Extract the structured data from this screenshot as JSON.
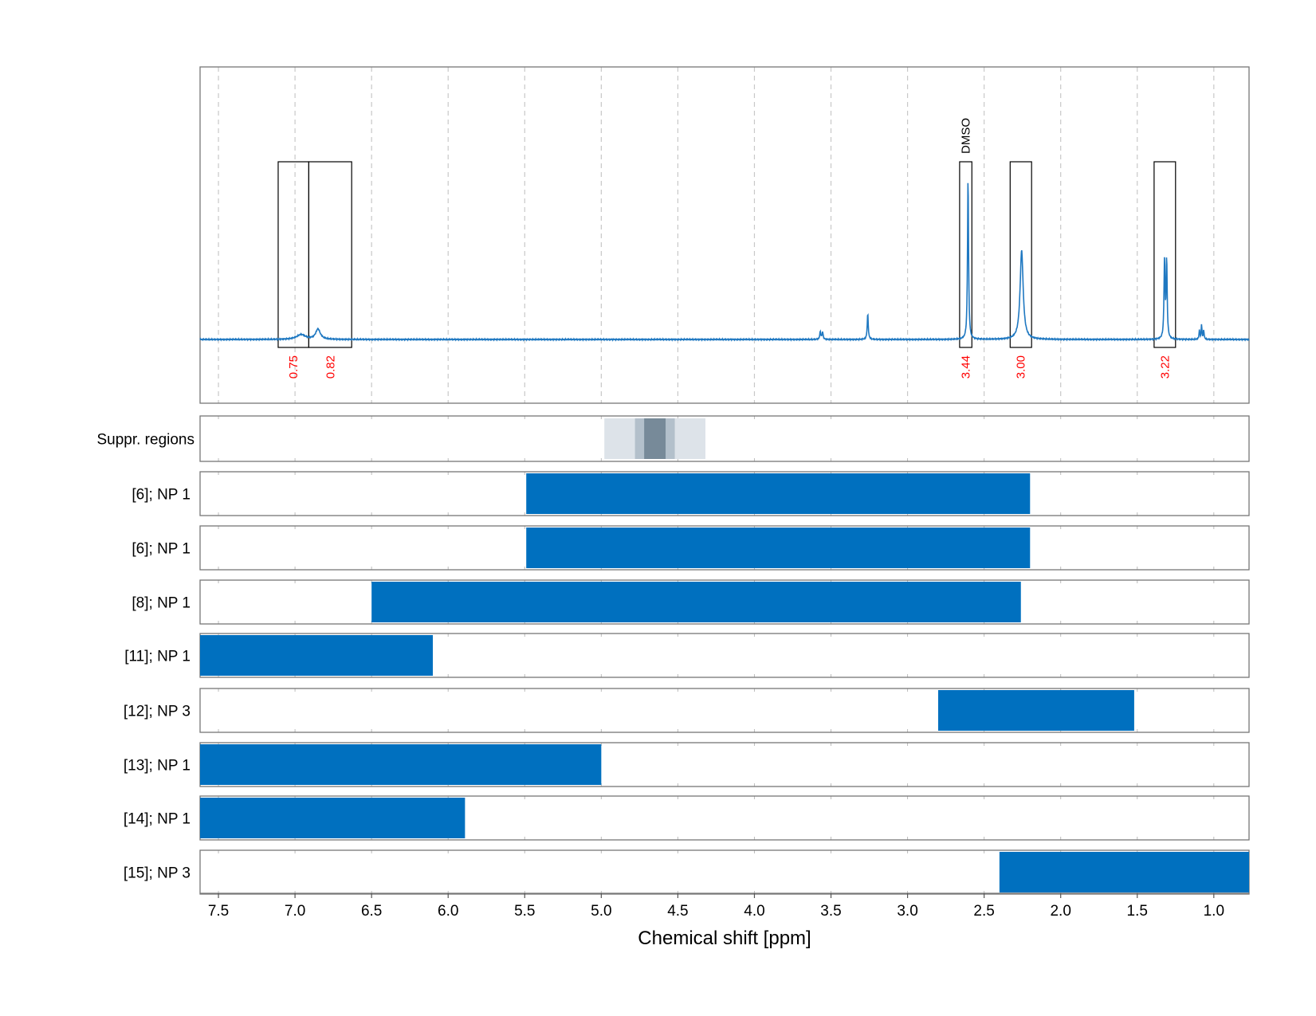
{
  "chart_data": {
    "type": "line",
    "xlabel": "Chemical shift [ppm]",
    "x_reversed": true,
    "xlim": [
      7.62,
      0.77
    ],
    "xticks": [
      7.5,
      7.0,
      6.5,
      6.0,
      5.5,
      5.0,
      4.5,
      4.0,
      3.5,
      3.0,
      2.5,
      2.0,
      1.5,
      1.0
    ],
    "xtick_labels": [
      "7.5",
      "7.0",
      "6.5",
      "6.0",
      "5.5",
      "5.0",
      "4.5",
      "4.0",
      "3.5",
      "3.0",
      "2.5",
      "2.0",
      "1.5",
      "1.0"
    ],
    "grid": true,
    "series_color": "#1f78c1",
    "bar_color": "#0070bf",
    "integral_label_color": "#ff0000",
    "spectrum": {
      "peaks": [
        {
          "ppm": 6.96,
          "height": 0.028,
          "width": 0.035
        },
        {
          "ppm": 6.85,
          "height": 0.06,
          "width": 0.018
        },
        {
          "ppm": 3.57,
          "height": 0.045,
          "width": 0.004
        },
        {
          "ppm": 3.555,
          "height": 0.045,
          "width": 0.004
        },
        {
          "ppm": 3.26,
          "height": 0.15,
          "width": 0.004
        },
        {
          "ppm": 2.605,
          "height": 0.95,
          "width": 0.004
        },
        {
          "ppm": 2.255,
          "height": 0.52,
          "width": 0.012
        },
        {
          "ppm": 1.322,
          "height": 0.46,
          "width": 0.004
        },
        {
          "ppm": 1.308,
          "height": 0.46,
          "width": 0.004
        },
        {
          "ppm": 1.094,
          "height": 0.055,
          "width": 0.003
        },
        {
          "ppm": 1.08,
          "height": 0.085,
          "width": 0.003
        },
        {
          "ppm": 1.066,
          "height": 0.055,
          "width": 0.003
        }
      ]
    },
    "integration_regions": [
      {
        "start": 7.11,
        "end": 6.91,
        "label": "0.75"
      },
      {
        "start": 6.91,
        "end": 6.63,
        "label": "0.82"
      },
      {
        "start": 2.66,
        "end": 2.58,
        "label": "3.44",
        "annotation": "DMSO"
      },
      {
        "start": 2.33,
        "end": 2.19,
        "label": "3.00"
      },
      {
        "start": 1.39,
        "end": 1.25,
        "label": "3.22"
      }
    ],
    "suppression": {
      "label": "Suppr. regions",
      "bands": [
        {
          "start": 4.98,
          "end": 4.32,
          "color": "#dde3e9"
        },
        {
          "start": 4.78,
          "end": 4.52,
          "color": "#b3c0cb"
        },
        {
          "start": 4.72,
          "end": 4.58,
          "color": "#778a99"
        }
      ]
    },
    "range_tracks": [
      {
        "label": "[6]; NP 1",
        "start": 5.49,
        "end": 2.2
      },
      {
        "label": "[6]; NP 1",
        "start": 5.49,
        "end": 2.2
      },
      {
        "label": "[8]; NP 1",
        "start": 6.5,
        "end": 2.26
      },
      {
        "label": "[11]; NP 1",
        "start": 7.62,
        "end": 6.1
      },
      {
        "label": "[12]; NP 3",
        "start": 2.8,
        "end": 1.52
      },
      {
        "label": "[13]; NP 1",
        "start": 7.62,
        "end": 5.0
      },
      {
        "label": "[14]; NP 1",
        "start": 7.62,
        "end": 5.89
      },
      {
        "label": "[15]; NP 3",
        "start": 2.4,
        "end": 0.77
      }
    ]
  }
}
